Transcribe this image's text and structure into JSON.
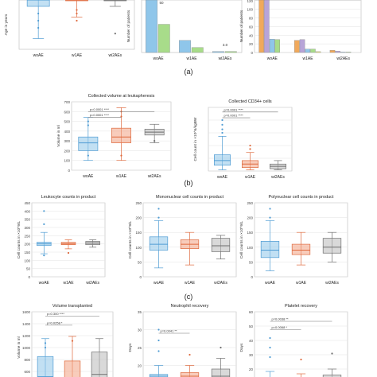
{
  "colors": {
    "woAE": "#8fc6ea",
    "woAE_dark": "#4f9cd3",
    "w1AE": "#f2a384",
    "w1AE_dark": "#de6a3e",
    "wi2AEs": "#b9b9b9",
    "wi2AEs_dark": "#6f6f6f",
    "green": "#a8dc8a",
    "orange": "#f0a95b",
    "purple": "#b7a4d8",
    "yellow": "#e7e27a",
    "sigline": "#777777"
  },
  "panel_labels": {
    "a": "(a)",
    "b": "(b)",
    "c": "(c)"
  },
  "chart_data": [
    {
      "id": "a1",
      "type": "box",
      "title": "",
      "ylabel": "Age in years",
      "xlabel": "",
      "categories": [
        "woAE",
        "w1AE",
        "wi2AEs"
      ],
      "ylim": [
        0,
        80
      ],
      "ytick_labels": [],
      "boxes": [
        {
          "cat": "woAE",
          "whisker_low": 15,
          "q1": 60,
          "median": 71,
          "q3": 78,
          "whisker_high": 80
        },
        {
          "cat": "w1AE",
          "whisker_low": 45,
          "q1": 70,
          "median": 76,
          "q3": 80,
          "whisker_high": 80
        },
        {
          "cat": "wi2AEs",
          "whisker_low": 60,
          "q1": 70,
          "median": 75,
          "q3": 80,
          "whisker_high": 80
        }
      ],
      "outliers": [
        {
          "cat": "woAE",
          "y": 30
        },
        {
          "cat": "woAE",
          "y": 40
        },
        {
          "cat": "woAE",
          "y": 50
        },
        {
          "cat": "w1AE",
          "y": 40
        },
        {
          "cat": "w1AE",
          "y": 50
        },
        {
          "cat": "w1AE",
          "y": 55
        },
        {
          "cat": "wi2AEs",
          "y": 22
        }
      ]
    },
    {
      "id": "a2",
      "type": "bar",
      "title": "",
      "xlabel": "",
      "ylabel": "Number of patients",
      "categories": [
        "woAE",
        "w1AE",
        "wi2AEs"
      ],
      "ylim": [
        0,
        60
      ],
      "ytick_labels": [],
      "series": [
        {
          "color": "#8fc6ea",
          "values": [
            57,
            12,
            1
          ]
        },
        {
          "color": "#a8dc8a",
          "values": [
            28,
            5,
            1
          ]
        }
      ],
      "labels_above": [
        "",
        "",
        "3.0"
      ],
      "label_near_top": "50"
    },
    {
      "id": "a3",
      "type": "bar",
      "title": "",
      "xlabel": "",
      "ylabel": "Number of patients",
      "categories": [
        "woAE",
        "w1AE",
        "wi2AEs"
      ],
      "ylim": [
        0,
        140
      ],
      "ytick_labels": [
        "140",
        "120",
        "100",
        "80",
        "60",
        "40",
        "20",
        "0"
      ],
      "series": [
        {
          "color": "#f0a95b",
          "values": [
            128,
            28,
            5
          ]
        },
        {
          "color": "#b7a4d8",
          "values": [
            125,
            30,
            3
          ]
        },
        {
          "color": "#8fc6ea",
          "values": [
            31,
            8,
            1
          ]
        },
        {
          "color": "#a8dc8a",
          "values": [
            30,
            8,
            1
          ]
        },
        {
          "color": "#e7e27a",
          "values": [
            0,
            2,
            0
          ]
        }
      ]
    },
    {
      "id": "b1",
      "type": "box",
      "title": "Collected volume at leukapheresis",
      "ylabel": "Volume in ml",
      "xlabel": "",
      "categories": [
        "woAE",
        "w1AE",
        "wi2AEs"
      ],
      "ylim": [
        0,
        700
      ],
      "ytick_labels": [
        "700",
        "600",
        "500",
        "400",
        "300",
        "200",
        "100",
        "0"
      ],
      "boxes": [
        {
          "cat": "woAE",
          "whisker_low": 100,
          "q1": 200,
          "median": 280,
          "q3": 340,
          "whisker_high": 540
        },
        {
          "cat": "w1AE",
          "whisker_low": 100,
          "q1": 280,
          "median": 340,
          "q3": 430,
          "whisker_high": 640
        },
        {
          "cat": "wi2AEs",
          "whisker_low": 280,
          "q1": 360,
          "median": 390,
          "q3": 420,
          "whisker_high": 470
        }
      ],
      "outliers": [
        {
          "cat": "woAE",
          "y": 500
        },
        {
          "cat": "woAE",
          "y": 460
        },
        {
          "cat": "woAE",
          "y": 150
        },
        {
          "cat": "w1AE",
          "y": 600
        },
        {
          "cat": "w1AE",
          "y": 550
        },
        {
          "cat": "w1AE",
          "y": 150
        },
        {
          "cat": "wi2AEs",
          "y": 300
        }
      ],
      "sig_lines": [
        {
          "from": "woAE",
          "to": "w1AE",
          "y": 540,
          "label": "p=0.0001 ****"
        },
        {
          "from": "woAE",
          "to": "wi2AEs",
          "y": 600,
          "label": "p=0.0001 ****"
        }
      ]
    },
    {
      "id": "b2",
      "type": "box",
      "title": "Collected CD34+ cells",
      "ylabel": "Cell count in ×10^6/kgBW",
      "xlabel": "",
      "categories": [
        "woAE",
        "w1AE",
        "wi2AEs"
      ],
      "ylim": [
        0,
        55
      ],
      "ytick_labels": [
        "",
        "",
        "",
        "",
        "",
        ""
      ],
      "boxes": [
        {
          "cat": "woAE",
          "whisker_low": 1,
          "q1": 5,
          "median": 9,
          "q3": 14,
          "whisker_high": 30
        },
        {
          "cat": "w1AE",
          "whisker_low": 1,
          "q1": 3,
          "median": 6,
          "q3": 9,
          "whisker_high": 16
        },
        {
          "cat": "wi2AEs",
          "whisker_low": 1,
          "q1": 2,
          "median": 4,
          "q3": 6,
          "whisker_high": 9
        }
      ],
      "outliers": [
        {
          "cat": "woAE",
          "y": 33
        },
        {
          "cat": "woAE",
          "y": 36
        },
        {
          "cat": "woAE",
          "y": 40
        },
        {
          "cat": "woAE",
          "y": 44
        },
        {
          "cat": "w1AE",
          "y": 19
        },
        {
          "cat": "w1AE",
          "y": 22
        }
      ],
      "sig_lines": [
        {
          "from": "woAE",
          "to": "w1AE",
          "y": 46,
          "label": "p=0.0001 ****"
        },
        {
          "from": "woAE",
          "to": "wi2AEs",
          "y": 51,
          "label": "p=0.0001 ****"
        }
      ]
    },
    {
      "id": "c1",
      "type": "box",
      "title": "Leukocyte counts in product",
      "ylabel": "Cell counts in ×10^9/L",
      "xlabel": "",
      "categories": [
        "woAE",
        "w1AE",
        "wi2AEs"
      ],
      "ylim": [
        0,
        450
      ],
      "ytick_labels": [
        "450",
        "400",
        "350",
        "300",
        "250",
        "200",
        "150",
        "100",
        "50",
        "0"
      ],
      "boxes": [
        {
          "cat": "woAE",
          "whisker_low": 140,
          "q1": 190,
          "median": 200,
          "q3": 210,
          "whisker_high": 270
        },
        {
          "cat": "w1AE",
          "whisker_low": 170,
          "q1": 195,
          "median": 200,
          "q3": 210,
          "whisker_high": 225
        },
        {
          "cat": "wi2AEs",
          "whisker_low": 180,
          "q1": 195,
          "median": 205,
          "q3": 215,
          "whisker_high": 225
        }
      ],
      "outliers": [
        {
          "cat": "woAE",
          "y": 320
        },
        {
          "cat": "woAE",
          "y": 400
        },
        {
          "cat": "woAE",
          "y": 130
        },
        {
          "cat": "w1AE",
          "y": 145
        }
      ]
    },
    {
      "id": "c2",
      "type": "box",
      "title": "Mononuclear cell counts in product",
      "ylabel": "Cell counts in ×10^9/L",
      "xlabel": "",
      "categories": [
        "woAE",
        "w1AE",
        "wi2AEs"
      ],
      "ylim": [
        0,
        250
      ],
      "ytick_labels": [
        "250",
        "200",
        "150",
        "100",
        "50",
        "0"
      ],
      "boxes": [
        {
          "cat": "woAE",
          "whisker_low": 30,
          "q1": 90,
          "median": 110,
          "q3": 135,
          "whisker_high": 190
        },
        {
          "cat": "w1AE",
          "whisker_low": 40,
          "q1": 95,
          "median": 110,
          "q3": 125,
          "whisker_high": 150
        },
        {
          "cat": "wi2AEs",
          "whisker_low": 60,
          "q1": 85,
          "median": 105,
          "q3": 130,
          "whisker_high": 140
        }
      ],
      "outliers": [
        {
          "cat": "woAE",
          "y": 230
        },
        {
          "cat": "woAE",
          "y": 200
        }
      ]
    },
    {
      "id": "c3",
      "type": "box",
      "title": "Polynuclear cell counts in product",
      "ylabel": "Cell counts in ×10^9/L",
      "xlabel": "",
      "categories": [
        "woAE",
        "w1AE",
        "wi2AEs"
      ],
      "ylim": [
        0,
        250
      ],
      "ytick_labels": [
        "250",
        "200",
        "150",
        "100",
        "50",
        "0"
      ],
      "boxes": [
        {
          "cat": "woAE",
          "whisker_low": 20,
          "q1": 65,
          "median": 90,
          "q3": 120,
          "whisker_high": 190
        },
        {
          "cat": "w1AE",
          "whisker_low": 40,
          "q1": 75,
          "median": 90,
          "q3": 110,
          "whisker_high": 150
        },
        {
          "cat": "wi2AEs",
          "whisker_low": 50,
          "q1": 80,
          "median": 100,
          "q3": 130,
          "whisker_high": 150
        }
      ],
      "outliers": [
        {
          "cat": "woAE",
          "y": 230
        },
        {
          "cat": "woAE",
          "y": 200
        }
      ]
    },
    {
      "id": "d1",
      "type": "box",
      "title": "Volume transplanted",
      "ylabel": "Volume in ml",
      "xlabel": "",
      "categories": [
        "woAE",
        "w1AE",
        "wi2AEs"
      ],
      "ylim": [
        0,
        1600
      ],
      "ytick_labels": [
        "1600",
        "1400",
        "1200",
        "1000",
        "800",
        "600",
        "400"
      ],
      "boxes": [
        {
          "cat": "woAE",
          "whisker_low": 0,
          "q1": 0,
          "median": 150,
          "q3": 600,
          "whisker_high": 1000
        },
        {
          "cat": "w1AE",
          "whisker_low": 0,
          "q1": 0,
          "median": 100,
          "q3": 500,
          "whisker_high": 1050
        },
        {
          "cat": "wi2AEs",
          "whisker_low": 0,
          "q1": 0,
          "median": 200,
          "q3": 700,
          "whisker_high": 1000
        }
      ],
      "outliers": [
        {
          "cat": "woAE",
          "y": 900
        },
        {
          "cat": "woAE",
          "y": 800
        },
        {
          "cat": "w1AE",
          "y": 950
        }
      ],
      "sig_lines": [
        {
          "from": "woAE",
          "to": "w1AE",
          "y": 1300,
          "label": "p=0.0258 *"
        },
        {
          "from": "woAE",
          "to": "wi2AEs",
          "y": 1500,
          "label": "p=0.300 ****"
        }
      ]
    },
    {
      "id": "d2",
      "type": "box",
      "title": "Neutrophil recovery",
      "ylabel": "Days",
      "xlabel": "",
      "categories": [
        "woAE",
        "w1AE",
        "wi2AEs"
      ],
      "ylim": [
        15,
        35
      ],
      "ytick_labels": [
        "35",
        "30",
        "25",
        "20",
        "15"
      ],
      "boxes": [
        {
          "cat": "woAE",
          "whisker_low": 16,
          "q1": 16.5,
          "median": 17,
          "q3": 17.5,
          "whisker_high": 20
        },
        {
          "cat": "w1AE",
          "whisker_low": 16,
          "q1": 16.5,
          "median": 17,
          "q3": 18,
          "whisker_high": 20
        },
        {
          "cat": "wi2AEs",
          "whisker_low": 16,
          "q1": 16.5,
          "median": 17,
          "q3": 19,
          "whisker_high": 22
        }
      ],
      "outliers": [
        {
          "cat": "woAE",
          "y": 24
        },
        {
          "cat": "woAE",
          "y": 27
        },
        {
          "cat": "woAE",
          "y": 30
        },
        {
          "cat": "w1AE",
          "y": 23
        },
        {
          "cat": "wi2AEs",
          "y": 25
        }
      ],
      "sig_lines": [
        {
          "from": "woAE",
          "to": "w1AE",
          "y": 29,
          "label": "p=0.0041 **"
        }
      ]
    },
    {
      "id": "d3",
      "type": "box",
      "title": "Platelet recovery",
      "ylabel": "Days",
      "xlabel": "",
      "categories": [
        "woAE",
        "w1AE",
        "wi2AEs"
      ],
      "ylim": [
        0,
        60
      ],
      "ytick_labels": [
        "60",
        "50",
        "40",
        "30",
        "20",
        "10"
      ],
      "boxes": [
        {
          "cat": "woAE",
          "whisker_low": 0,
          "q1": 0,
          "median": 2,
          "q3": 5,
          "whisker_high": 10
        },
        {
          "cat": "w1AE",
          "whisker_low": 0,
          "q1": 0,
          "median": 2,
          "q3": 4,
          "whisker_high": 8
        },
        {
          "cat": "wi2AEs",
          "whisker_low": 0,
          "q1": 0,
          "median": 3,
          "q3": 7,
          "whisker_high": 12
        }
      ],
      "outliers": [
        {
          "cat": "woAE",
          "y": 22
        },
        {
          "cat": "woAE",
          "y": 30
        },
        {
          "cat": "woAE",
          "y": 38
        },
        {
          "cat": "w1AE",
          "y": 20
        },
        {
          "cat": "wi2AEs",
          "y": 25
        }
      ],
      "sig_lines": [
        {
          "from": "woAE",
          "to": "w1AE",
          "y": 45,
          "label": "p=0.0068 *"
        },
        {
          "from": "woAE",
          "to": "wi2AEs",
          "y": 52,
          "label": "p=0.0038 **"
        }
      ]
    }
  ]
}
